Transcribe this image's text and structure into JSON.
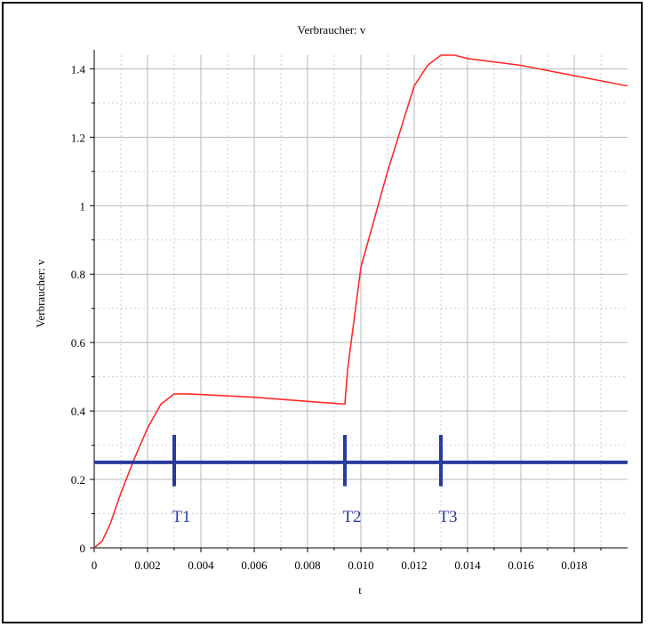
{
  "chart_data": {
    "type": "line",
    "title": "Verbraucher: v",
    "xlabel": "t",
    "ylabel": "Verbraucher: v",
    "xlim": [
      0,
      0.02
    ],
    "ylim": [
      0,
      1.44
    ],
    "grid": true,
    "x_ticks": [
      {
        "value": 0,
        "label": "0"
      },
      {
        "value": 0.002,
        "label": "0.002"
      },
      {
        "value": 0.004,
        "label": "0.004"
      },
      {
        "value": 0.006,
        "label": "0.006"
      },
      {
        "value": 0.008,
        "label": "0.008"
      },
      {
        "value": 0.01,
        "label": "0.010"
      },
      {
        "value": 0.012,
        "label": "0.012"
      },
      {
        "value": 0.014,
        "label": "0.014"
      },
      {
        "value": 0.016,
        "label": "0.016"
      },
      {
        "value": 0.018,
        "label": "0.018"
      }
    ],
    "y_ticks": [
      {
        "value": 0,
        "label": "0"
      },
      {
        "value": 0.2,
        "label": "0.2"
      },
      {
        "value": 0.4,
        "label": "0.4"
      },
      {
        "value": 0.6,
        "label": "0.6"
      },
      {
        "value": 0.8,
        "label": "0.8"
      },
      {
        "value": 1,
        "label": "1"
      },
      {
        "value": 1.2,
        "label": "1.2"
      },
      {
        "value": 1.4,
        "label": "1.4"
      }
    ],
    "series": [
      {
        "color": "#ff2a2a",
        "points": [
          [
            0,
            0
          ],
          [
            0.0003,
            0.02
          ],
          [
            0.0006,
            0.07
          ],
          [
            0.001,
            0.16
          ],
          [
            0.0015,
            0.26
          ],
          [
            0.002,
            0.35
          ],
          [
            0.0025,
            0.42
          ],
          [
            0.003,
            0.45
          ],
          [
            0.0035,
            0.45
          ],
          [
            0.004,
            0.448
          ],
          [
            0.006,
            0.44
          ],
          [
            0.008,
            0.428
          ],
          [
            0.0094,
            0.42
          ],
          [
            0.0095,
            0.52
          ],
          [
            0.01,
            0.82
          ],
          [
            0.011,
            1.1
          ],
          [
            0.012,
            1.35
          ],
          [
            0.0125,
            1.41
          ],
          [
            0.013,
            1.44
          ],
          [
            0.0135,
            1.44
          ],
          [
            0.014,
            1.43
          ],
          [
            0.016,
            1.41
          ],
          [
            0.018,
            1.38
          ],
          [
            0.02,
            1.35
          ]
        ]
      }
    ],
    "markers": {
      "color": "#2a3a9c",
      "baseline_y": 0.25,
      "tick_low": 0.18,
      "tick_high": 0.33,
      "items": [
        {
          "label": "T1",
          "x": 0.003
        },
        {
          "label": "T2",
          "x": 0.0094
        },
        {
          "label": "T3",
          "x": 0.013
        }
      ]
    }
  }
}
